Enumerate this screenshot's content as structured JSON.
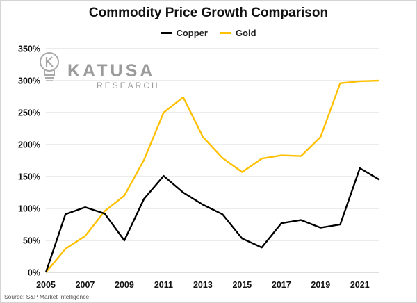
{
  "chart_data": {
    "type": "line",
    "title": "Commodity Price Growth Comparison",
    "xlabel": "",
    "ylabel": "",
    "x": [
      2005,
      2006,
      2007,
      2008,
      2009,
      2010,
      2011,
      2012,
      2013,
      2014,
      2015,
      2016,
      2017,
      2018,
      2019,
      2020,
      2021,
      2022
    ],
    "x_ticks": [
      "2005",
      "2007",
      "2009",
      "2011",
      "2013",
      "2015",
      "2017",
      "2019",
      "2021"
    ],
    "y_ticks": [
      "0%",
      "50%",
      "100%",
      "150%",
      "200%",
      "250%",
      "300%",
      "350%"
    ],
    "ylim": [
      0,
      350
    ],
    "xlim": [
      2005,
      2022
    ],
    "grid": "horizontal",
    "legend_position": "top-center",
    "series": [
      {
        "name": "Copper",
        "color": "#000000",
        "values": [
          0,
          91,
          102,
          92,
          50,
          115,
          151,
          125,
          106,
          91,
          53,
          39,
          77,
          82,
          70,
          75,
          163,
          145
        ]
      },
      {
        "name": "Gold",
        "color": "#FFC000",
        "values": [
          0,
          37,
          57,
          96,
          120,
          176,
          250,
          274,
          212,
          179,
          157,
          178,
          183,
          182,
          212,
          296,
          299,
          300
        ]
      }
    ]
  },
  "source_note": "Source: S&P Market Intelligence",
  "logo": {
    "name": "KATUSA",
    "sub": "RESEARCH",
    "icon": "lightbulb-k-icon"
  }
}
